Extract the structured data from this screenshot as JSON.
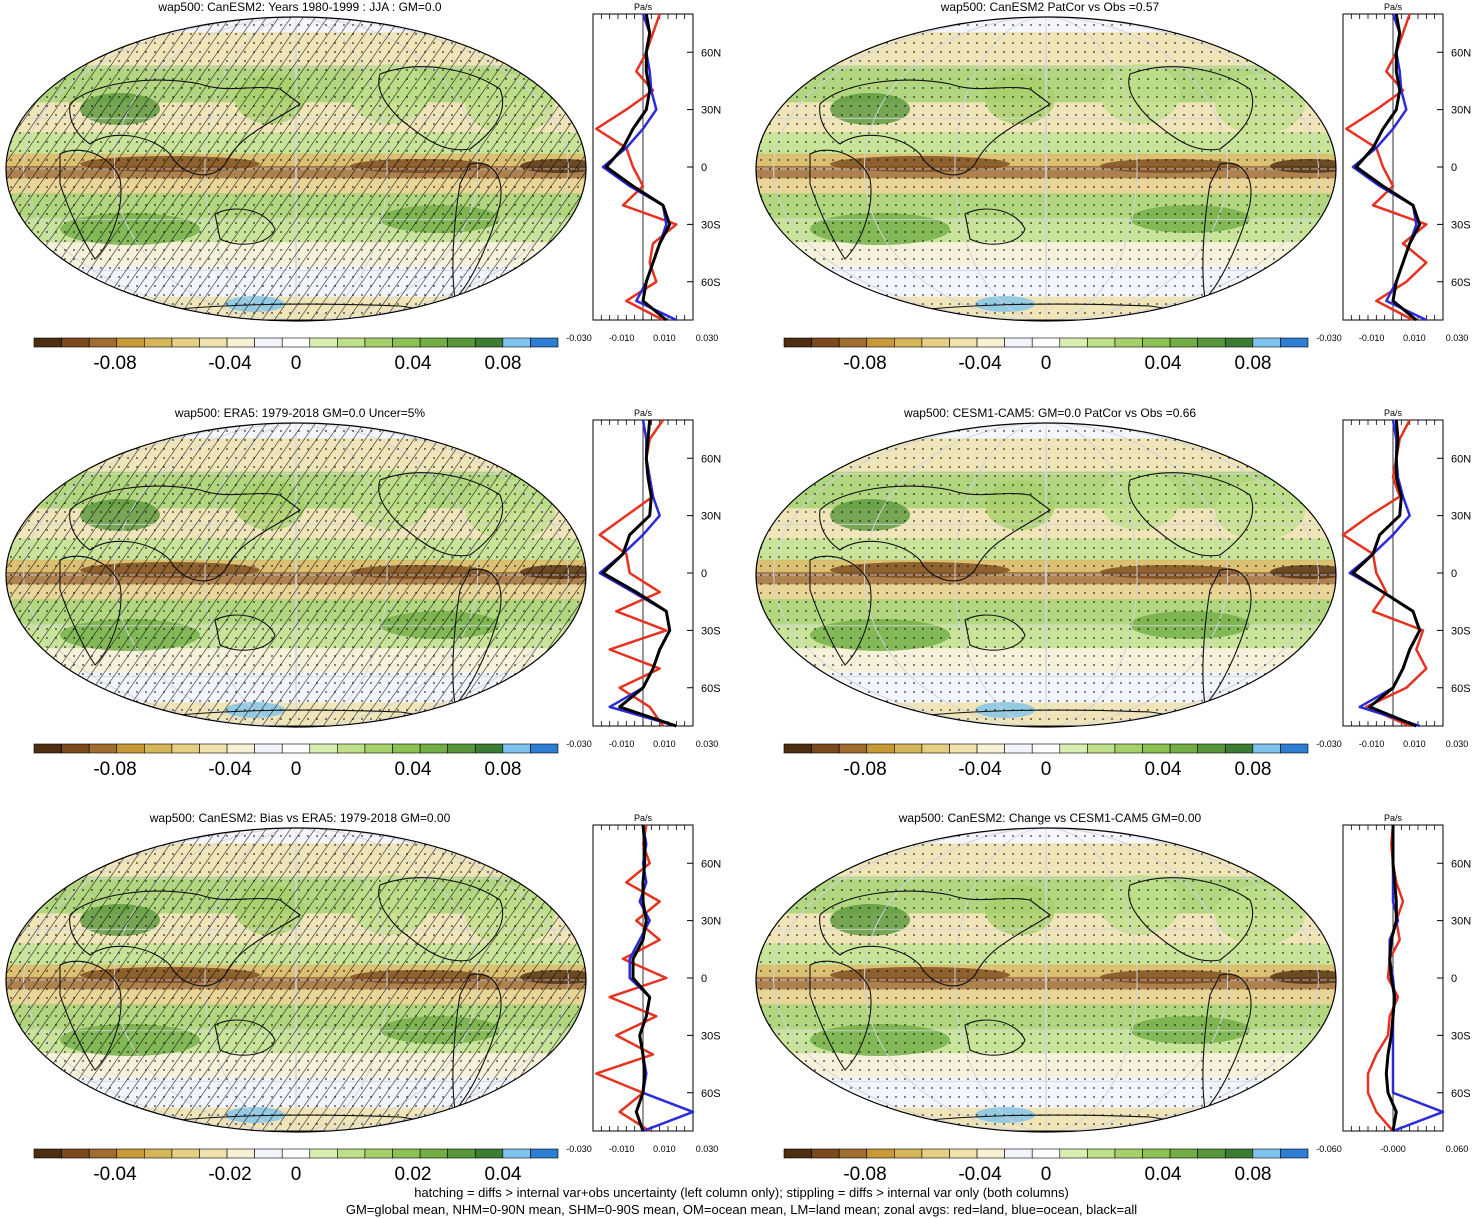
{
  "colors": {
    "scale": [
      "#4f2d10",
      "#7a4a1e",
      "#a06d31",
      "#c79a37",
      "#d7b65a",
      "#e5cf85",
      "#efe2ad",
      "#f6f0d4",
      "#f2f4fb",
      "#ffffff",
      "#d9eeb1",
      "#bfe08a",
      "#a6d06a",
      "#8cc154",
      "#72ad45",
      "#57963a",
      "#3a7c32",
      "#7ec3ee",
      "#2d7ed3"
    ],
    "land": "#e53221",
    "ocean": "#2b2bd9",
    "all": "#000000"
  },
  "panels": [
    {
      "title": "wap500: CanESM2: Years 1980-1999 : JJA : GM=0.0",
      "colorbar_labels": [
        "-0.08",
        "-0.04",
        "0",
        "0.04",
        "0.08"
      ],
      "profile": {
        "unit": "Pa/s",
        "x_ticks": [
          "-0.030",
          "-0.010",
          "0.010",
          "0.030"
        ],
        "y_ticks": [
          "60N",
          "30N",
          "0",
          "30S",
          "60S"
        ],
        "xlim": [
          -0.03,
          0.03
        ]
      },
      "hatching": true
    },
    {
      "title": "wap500: CanESM2 PatCor vs Obs =0.57",
      "colorbar_labels": [
        "-0.08",
        "-0.04",
        "0",
        "0.04",
        "0.08"
      ],
      "profile": {
        "unit": "Pa/s",
        "x_ticks": [
          "-0.030",
          "-0.010",
          "0.010",
          "0.030"
        ],
        "y_ticks": [
          "60N",
          "30N",
          "0",
          "30S",
          "60S"
        ],
        "xlim": [
          -0.03,
          0.03
        ]
      },
      "hatching": false
    },
    {
      "title": "wap500: ERA5: 1979-2018 GM=0.0 Uncer=5%",
      "colorbar_labels": [
        "-0.08",
        "-0.04",
        "0",
        "0.04",
        "0.08"
      ],
      "profile": {
        "unit": "Pa/s",
        "x_ticks": [
          "-0.030",
          "-0.010",
          "0.010",
          "0.030"
        ],
        "y_ticks": [
          "60N",
          "30N",
          "0",
          "30S",
          "60S"
        ],
        "xlim": [
          -0.03,
          0.03
        ]
      },
      "hatching": true
    },
    {
      "title": "wap500: CESM1-CAM5: GM=0.0 PatCor vs Obs =0.66",
      "colorbar_labels": [
        "-0.08",
        "-0.04",
        "0",
        "0.04",
        "0.08"
      ],
      "profile": {
        "unit": "Pa/s",
        "x_ticks": [
          "-0.030",
          "-0.010",
          "0.010",
          "0.030"
        ],
        "y_ticks": [
          "60N",
          "30N",
          "0",
          "30S",
          "60S"
        ],
        "xlim": [
          -0.03,
          0.03
        ]
      },
      "hatching": false
    },
    {
      "title": "wap500: CanESM2: Bias vs ERA5: 1979-2018 GM=0.00",
      "colorbar_labels": [
        "-0.04",
        "-0.02",
        "0",
        "0.02",
        "0.04"
      ],
      "profile": {
        "unit": "Pa/s",
        "x_ticks": [
          "-0.030",
          "-0.010",
          "0.010",
          "0.030"
        ],
        "y_ticks": [
          "60N",
          "30N",
          "0",
          "30S",
          "60S"
        ],
        "xlim": [
          -0.03,
          0.03
        ]
      },
      "hatching": true
    },
    {
      "title": "wap500: CanESM2: Change vs CESM1-CAM5 GM=0.00",
      "colorbar_labels": [
        "-0.08",
        "-0.04",
        "0",
        "0.04",
        "0.08"
      ],
      "profile": {
        "unit": "Pa/s",
        "x_ticks": [
          "-0.060",
          "-0.000",
          "0.060"
        ],
        "y_ticks": [
          "60N",
          "30N",
          "0",
          "30S",
          "60S"
        ],
        "xlim": [
          -0.06,
          0.06
        ]
      },
      "hatching": false
    }
  ],
  "footer": {
    "line1": "hatching = diffs > internal var+obs uncertainty (left column only); stippling = diffs > internal var only (both columns)",
    "line2": "GM=global mean, NHM=0-90N mean, SHM=0-90S mean, OM=ocean mean, LM=land mean; zonal avgs: red=land, blue=ocean, black=all"
  },
  "chart_data": [
    {
      "type": "heatmap",
      "title": "wap500: CanESM2: Years 1980-1999 : JJA : GM=0.0",
      "colorbar": {
        "min": -0.1,
        "max": 0.1,
        "labels": [
          "-0.08",
          "-0.04",
          "0",
          "0.04",
          "0.08"
        ]
      },
      "zonal_profile": {
        "type": "line",
        "unit": "Pa/s",
        "xlim": [
          -0.03,
          0.03
        ],
        "y_ticks": [
          "60N",
          "30N",
          "0",
          "30S",
          "60S"
        ],
        "lat": [
          80,
          70,
          60,
          50,
          40,
          30,
          20,
          10,
          0,
          -10,
          -20,
          -30,
          -40,
          -50,
          -60,
          -70,
          -80
        ],
        "series": [
          {
            "name": "land",
            "values": [
              0.01,
              0.006,
              0.002,
              -0.004,
              0.006,
              -0.01,
              -0.028,
              -0.01,
              -0.006,
              0.0,
              -0.012,
              0.02,
              0.006,
              0.004,
              0.008,
              -0.01,
              0.012
            ]
          },
          {
            "name": "ocean",
            "values": [
              0.0,
              0.004,
              0.002,
              0.004,
              0.005,
              0.008,
              0.0,
              -0.01,
              -0.024,
              -0.008,
              0.012,
              0.014,
              0.01,
              0.006,
              0.002,
              -0.004,
              0.02
            ]
          },
          {
            "name": "all",
            "values": [
              0.002,
              0.004,
              0.002,
              0.002,
              0.004,
              0.002,
              -0.006,
              -0.012,
              -0.022,
              -0.006,
              0.012,
              0.016,
              0.01,
              0.006,
              0.002,
              0.0,
              0.014
            ]
          }
        ]
      }
    },
    {
      "type": "heatmap",
      "title": "wap500: CanESM2 PatCor vs Obs =0.57",
      "colorbar": {
        "min": -0.1,
        "max": 0.1,
        "labels": [
          "-0.08",
          "-0.04",
          "0",
          "0.04",
          "0.08"
        ]
      },
      "zonal_profile": {
        "type": "line",
        "unit": "Pa/s",
        "xlim": [
          -0.03,
          0.03
        ],
        "y_ticks": [
          "60N",
          "30N",
          "0",
          "30S",
          "60S"
        ],
        "lat": [
          80,
          70,
          60,
          50,
          40,
          30,
          20,
          10,
          0,
          -10,
          -20,
          -30,
          -40,
          -50,
          -60,
          -70,
          -80
        ],
        "series": [
          {
            "name": "land",
            "values": [
              0.01,
              0.006,
              0.002,
              -0.004,
              0.006,
              -0.01,
              -0.028,
              -0.01,
              -0.006,
              0.0,
              -0.012,
              0.02,
              0.006,
              0.02,
              0.008,
              -0.01,
              0.012
            ]
          },
          {
            "name": "ocean",
            "values": [
              0.0,
              0.004,
              0.002,
              0.004,
              0.005,
              0.008,
              0.0,
              -0.01,
              -0.024,
              -0.008,
              0.012,
              0.014,
              0.01,
              0.006,
              0.002,
              -0.004,
              0.02
            ]
          },
          {
            "name": "all",
            "values": [
              0.002,
              0.004,
              0.002,
              0.002,
              0.004,
              0.002,
              -0.006,
              -0.012,
              -0.022,
              -0.006,
              0.012,
              0.016,
              0.01,
              0.006,
              0.002,
              0.0,
              0.014
            ]
          }
        ]
      }
    },
    {
      "type": "heatmap",
      "title": "wap500: ERA5: 1979-2018 GM=0.0 Uncer=5%",
      "colorbar": {
        "min": -0.1,
        "max": 0.1,
        "labels": [
          "-0.08",
          "-0.04",
          "0",
          "0.04",
          "0.08"
        ]
      },
      "zonal_profile": {
        "type": "line",
        "unit": "Pa/s",
        "xlim": [
          -0.03,
          0.03
        ],
        "y_ticks": [
          "60N",
          "30N",
          "0",
          "30S",
          "60S"
        ],
        "lat": [
          80,
          70,
          60,
          50,
          40,
          30,
          20,
          10,
          0,
          -10,
          -20,
          -30,
          -40,
          -50,
          -60,
          -70,
          -80
        ],
        "series": [
          {
            "name": "land",
            "values": [
              0.012,
              0.004,
              0.002,
              0.004,
              0.006,
              -0.01,
              -0.026,
              -0.01,
              -0.008,
              0.01,
              -0.016,
              0.014,
              -0.02,
              0.01,
              -0.014,
              0.004,
              0.012
            ]
          },
          {
            "name": "ocean",
            "values": [
              0.0,
              0.002,
              0.002,
              0.004,
              0.006,
              0.01,
              0.0,
              -0.012,
              -0.026,
              -0.006,
              0.014,
              0.016,
              0.01,
              0.006,
              0.0,
              -0.02,
              0.02
            ]
          },
          {
            "name": "all",
            "values": [
              0.004,
              0.003,
              0.002,
              0.003,
              0.005,
              0.004,
              -0.008,
              -0.012,
              -0.024,
              -0.004,
              0.014,
              0.016,
              0.01,
              0.006,
              0.0,
              -0.014,
              0.02
            ]
          }
        ]
      }
    },
    {
      "type": "heatmap",
      "title": "wap500: CESM1-CAM5: GM=0.0 PatCor vs Obs =0.66",
      "colorbar": {
        "min": -0.1,
        "max": 0.1,
        "labels": [
          "-0.08",
          "-0.04",
          "0",
          "0.04",
          "0.08"
        ]
      },
      "zonal_profile": {
        "type": "line",
        "unit": "Pa/s",
        "xlim": [
          -0.03,
          0.03
        ],
        "y_ticks": [
          "60N",
          "30N",
          "0",
          "30S",
          "60S"
        ],
        "lat": [
          80,
          70,
          60,
          50,
          40,
          30,
          20,
          10,
          0,
          -10,
          -20,
          -30,
          -40,
          -50,
          -60,
          -70,
          -80
        ],
        "series": [
          {
            "name": "land",
            "values": [
              0.01,
              0.004,
              0.002,
              0.0,
              0.004,
              -0.014,
              -0.03,
              -0.012,
              -0.01,
              -0.004,
              -0.012,
              0.018,
              0.014,
              0.02,
              0.008,
              -0.016,
              0.01
            ]
          },
          {
            "name": "ocean",
            "values": [
              0.0,
              0.002,
              0.002,
              0.003,
              0.006,
              0.01,
              0.0,
              -0.012,
              -0.026,
              -0.006,
              0.012,
              0.016,
              0.01,
              0.006,
              0.0,
              -0.02,
              0.016
            ]
          },
          {
            "name": "all",
            "values": [
              0.002,
              0.003,
              0.002,
              0.002,
              0.005,
              0.004,
              -0.008,
              -0.012,
              -0.024,
              -0.006,
              0.012,
              0.016,
              0.01,
              0.006,
              0.0,
              -0.014,
              0.014
            ]
          }
        ]
      }
    },
    {
      "type": "heatmap",
      "title": "wap500: CanESM2: Bias vs ERA5: 1979-2018 GM=0.00",
      "colorbar": {
        "min": -0.05,
        "max": 0.05,
        "labels": [
          "-0.04",
          "-0.02",
          "0",
          "0.02",
          "0.04"
        ]
      },
      "zonal_profile": {
        "type": "line",
        "unit": "Pa/s",
        "xlim": [
          -0.03,
          0.03
        ],
        "y_ticks": [
          "60N",
          "30N",
          "0",
          "30S",
          "60S"
        ],
        "lat": [
          80,
          70,
          60,
          50,
          40,
          30,
          20,
          10,
          0,
          -10,
          -20,
          -30,
          -40,
          -50,
          -60,
          -70,
          -80
        ],
        "series": [
          {
            "name": "land",
            "values": [
              0.002,
              0.0,
              0.004,
              -0.01,
              0.01,
              -0.004,
              0.01,
              -0.012,
              0.014,
              -0.02,
              0.008,
              -0.016,
              0.006,
              -0.028,
              0.0,
              -0.014,
              0.004
            ]
          },
          {
            "name": "ocean",
            "values": [
              0.0,
              0.002,
              0.0,
              0.002,
              -0.002,
              0.004,
              -0.002,
              -0.008,
              -0.008,
              0.004,
              0.002,
              -0.002,
              0.0,
              0.002,
              0.0,
              0.03,
              0.0
            ]
          },
          {
            "name": "all",
            "values": [
              0.0,
              0.001,
              0.001,
              0.0,
              0.0,
              0.002,
              0.0,
              -0.006,
              -0.006,
              0.004,
              0.002,
              -0.002,
              0.0,
              0.001,
              0.0,
              -0.004,
              0.0
            ]
          }
        ]
      }
    },
    {
      "type": "heatmap",
      "title": "wap500: CanESM2: Change vs CESM1-CAM5 GM=0.00",
      "colorbar": {
        "min": -0.1,
        "max": 0.1,
        "labels": [
          "-0.08",
          "-0.04",
          "0",
          "0.04",
          "0.08"
        ]
      },
      "zonal_profile": {
        "type": "line",
        "unit": "Pa/s",
        "xlim": [
          -0.06,
          0.06
        ],
        "y_ticks": [
          "60N",
          "30N",
          "0",
          "30S",
          "60S"
        ],
        "lat": [
          80,
          70,
          60,
          50,
          40,
          30,
          20,
          10,
          0,
          -10,
          -20,
          -30,
          -40,
          -50,
          -60,
          -70,
          -80
        ],
        "series": [
          {
            "name": "land",
            "values": [
              0.0,
              -0.002,
              0.0,
              0.004,
              0.012,
              0.004,
              0.008,
              -0.004,
              -0.006,
              0.006,
              -0.004,
              -0.006,
              -0.02,
              -0.03,
              -0.03,
              -0.02,
              0.0
            ]
          },
          {
            "name": "ocean",
            "values": [
              0.0,
              0.0,
              0.0,
              0.0,
              0.0,
              0.006,
              -0.004,
              -0.004,
              0.0,
              0.002,
              0.0,
              0.0,
              0.0,
              0.0,
              0.0,
              0.06,
              0.0
            ]
          },
          {
            "name": "all",
            "values": [
              0.0,
              0.0,
              0.0,
              0.002,
              0.004,
              0.004,
              -0.002,
              -0.004,
              -0.002,
              0.002,
              0.0,
              -0.002,
              -0.006,
              -0.008,
              -0.006,
              0.004,
              0.0
            ]
          }
        ]
      }
    }
  ]
}
